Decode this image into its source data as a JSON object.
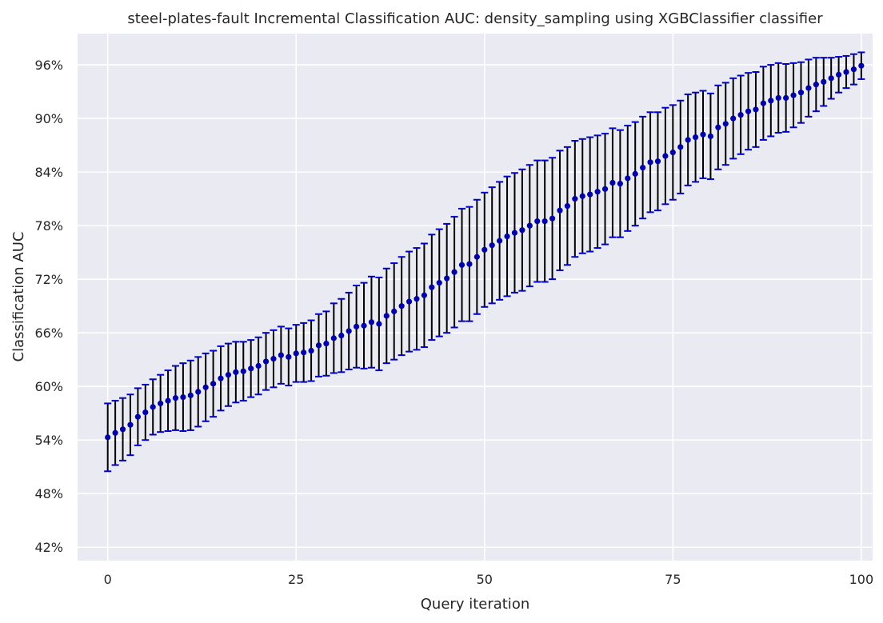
{
  "chart_data": {
    "type": "scatter",
    "title": "steel-plates-fault Incremental Classification AUC: density_sampling using XGBClassifier classifier",
    "xlabel": "Query iteration",
    "ylabel": "Classification AUC",
    "xlim": [
      -4,
      101.5
    ],
    "ylim": [
      40.5,
      99.5
    ],
    "xticks": [
      0,
      25,
      50,
      75,
      100
    ],
    "xtick_labels": [
      "0",
      "25",
      "50",
      "75",
      "100"
    ],
    "yticks": [
      42,
      48,
      54,
      60,
      66,
      72,
      78,
      84,
      90,
      96
    ],
    "ytick_labels": [
      "42%",
      "48%",
      "54%",
      "60%",
      "66%",
      "72%",
      "78%",
      "84%",
      "90%",
      "96%"
    ],
    "grid": true,
    "style": {
      "background": "#EAEAF2",
      "grid_color": "#FFFFFF",
      "marker_color": "#0000AA",
      "errorbar_color": "#000000",
      "cap_color": "#0000CC"
    },
    "series": [
      {
        "x": [
          0,
          1,
          2,
          3,
          4,
          5,
          6,
          7,
          8,
          9,
          10,
          11,
          12,
          13,
          14,
          15,
          16,
          17,
          18,
          19,
          20,
          21,
          22,
          23,
          24,
          25,
          26,
          27,
          28,
          29,
          30,
          31,
          32,
          33,
          34,
          35,
          36,
          37,
          38,
          39,
          40,
          41,
          42,
          43,
          44,
          45,
          46,
          47,
          48,
          49,
          50,
          51,
          52,
          53,
          54,
          55,
          56,
          57,
          58,
          59,
          60,
          61,
          62,
          63,
          64,
          65,
          66,
          67,
          68,
          69,
          70,
          71,
          72,
          73,
          74,
          75,
          76,
          77,
          78,
          79,
          80,
          81,
          82,
          83,
          84,
          85,
          86,
          87,
          88,
          89,
          90,
          91,
          92,
          93,
          94,
          95,
          96,
          97,
          98,
          99,
          100
        ],
        "y": [
          54.3,
          54.8,
          55.2,
          55.7,
          56.6,
          57.1,
          57.7,
          58.1,
          58.4,
          58.7,
          58.8,
          59.0,
          59.4,
          59.9,
          60.3,
          60.9,
          61.3,
          61.6,
          61.7,
          62.0,
          62.3,
          62.8,
          63.1,
          63.5,
          63.3,
          63.7,
          63.8,
          64.0,
          64.6,
          64.8,
          65.4,
          65.7,
          66.2,
          66.7,
          66.8,
          67.2,
          67.0,
          67.9,
          68.4,
          69.0,
          69.5,
          69.8,
          70.2,
          71.1,
          71.6,
          72.1,
          72.8,
          73.6,
          73.7,
          74.5,
          75.3,
          75.8,
          76.3,
          76.8,
          77.2,
          77.5,
          78.0,
          78.5,
          78.5,
          78.8,
          79.7,
          80.2,
          81.0,
          81.3,
          81.5,
          81.8,
          82.1,
          82.8,
          82.7,
          83.3,
          83.8,
          84.5,
          85.1,
          85.2,
          85.8,
          86.2,
          86.8,
          87.6,
          87.9,
          88.2,
          88.0,
          89.0,
          89.4,
          90.0,
          90.4,
          90.8,
          91.0,
          91.7,
          92.0,
          92.3,
          92.3,
          92.6,
          92.9,
          93.4,
          93.8,
          94.1,
          94.5,
          94.9,
          95.2,
          95.5,
          95.9
        ],
        "err": [
          3.8,
          3.6,
          3.5,
          3.4,
          3.2,
          3.1,
          3.1,
          3.2,
          3.4,
          3.6,
          3.8,
          3.9,
          3.9,
          3.8,
          3.7,
          3.6,
          3.5,
          3.4,
          3.3,
          3.2,
          3.2,
          3.2,
          3.2,
          3.2,
          3.2,
          3.2,
          3.3,
          3.4,
          3.5,
          3.6,
          3.9,
          4.1,
          4.3,
          4.6,
          4.8,
          5.1,
          5.2,
          5.3,
          5.4,
          5.5,
          5.6,
          5.7,
          5.8,
          5.9,
          6.0,
          6.1,
          6.2,
          6.3,
          6.4,
          6.4,
          6.4,
          6.5,
          6.6,
          6.7,
          6.7,
          6.8,
          6.8,
          6.8,
          6.8,
          6.8,
          6.7,
          6.6,
          6.5,
          6.4,
          6.4,
          6.3,
          6.2,
          6.1,
          6.0,
          5.9,
          5.8,
          5.7,
          5.6,
          5.5,
          5.4,
          5.3,
          5.2,
          5.1,
          5.0,
          4.9,
          4.8,
          4.7,
          4.6,
          4.5,
          4.4,
          4.3,
          4.2,
          4.1,
          4.0,
          3.9,
          3.8,
          3.6,
          3.4,
          3.2,
          3.0,
          2.7,
          2.3,
          2.0,
          1.8,
          1.7,
          1.5
        ]
      }
    ]
  }
}
